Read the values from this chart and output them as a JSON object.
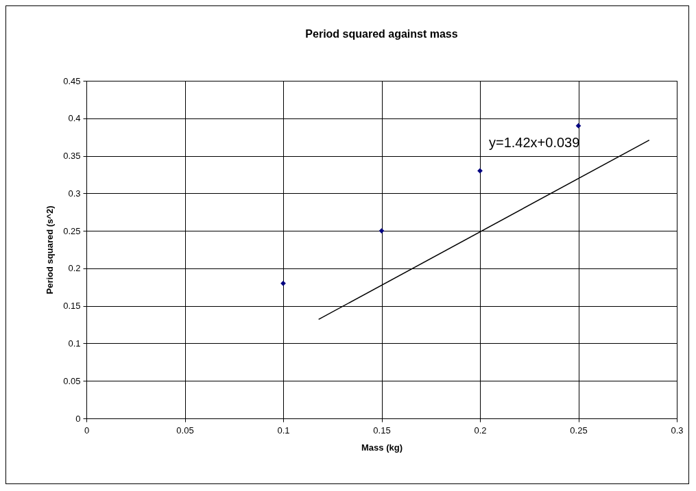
{
  "chart_data": {
    "type": "scatter",
    "title": "Period squared against mass",
    "xlabel": "Mass (kg)",
    "ylabel": "Period squared (s^2)",
    "series": [
      {
        "color": "#000080",
        "marker": "diamond",
        "x": [
          0.1,
          0.15,
          0.2,
          0.25
        ],
        "values": [
          0.18,
          0.25,
          0.33,
          0.39
        ]
      },
      {
        "type": "line",
        "color": "#000000",
        "marker": "none",
        "x": [
          0.118,
          0.286
        ],
        "values": [
          0.132,
          0.371
        ]
      }
    ],
    "annotations": [
      "y=1.42x+0.039"
    ],
    "xlim": [
      0,
      0.3
    ],
    "xticks": [
      0,
      0.05,
      0.1,
      0.15,
      0.2,
      0.25,
      0.3
    ],
    "ylim": [
      0,
      0.45
    ],
    "yticks": [
      0,
      0.05,
      0.1,
      0.15,
      0.2,
      0.25,
      0.3,
      0.35,
      0.4,
      0.45
    ],
    "grid": true
  }
}
